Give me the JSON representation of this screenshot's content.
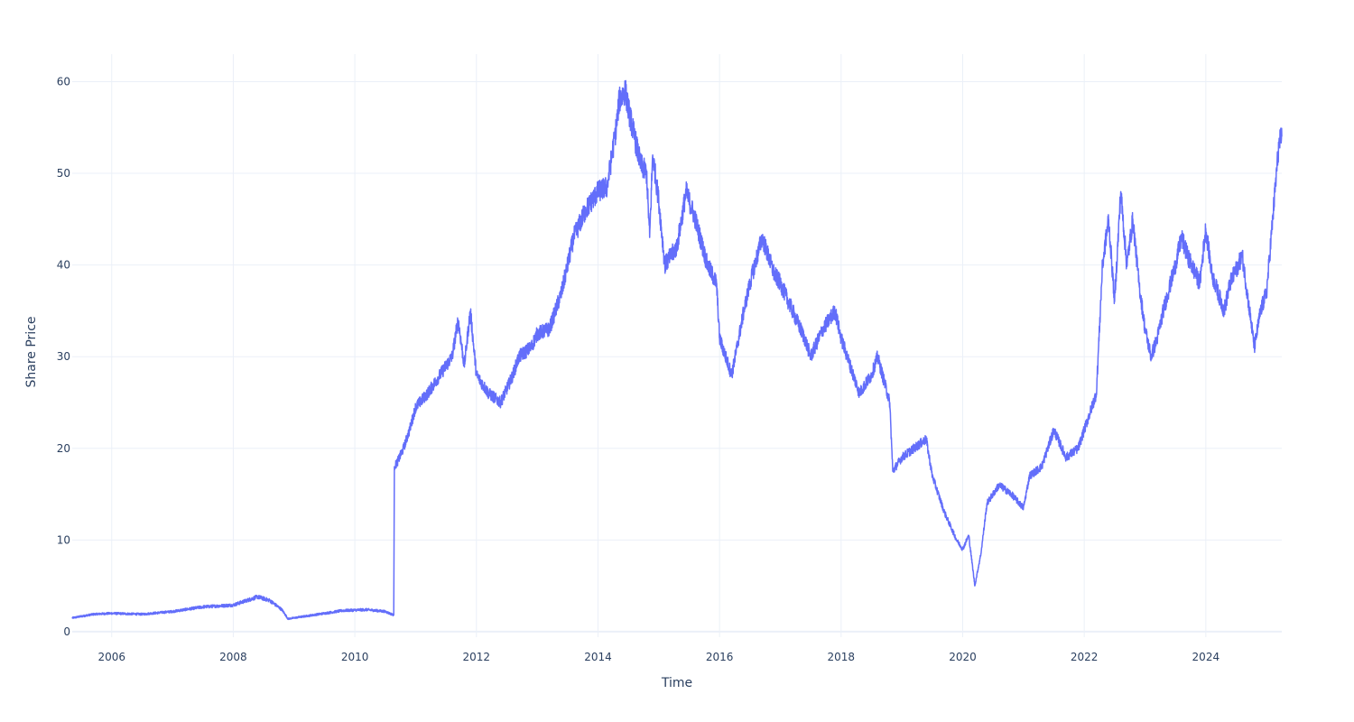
{
  "chart_data": {
    "type": "line",
    "title": "",
    "xlabel": "Time",
    "ylabel": "Share Price",
    "xlim": [
      2005.35,
      2025.25
    ],
    "ylim": [
      -0.6,
      63
    ],
    "x_ticks": [
      2006,
      2008,
      2010,
      2012,
      2014,
      2016,
      2018,
      2020,
      2022,
      2024
    ],
    "x_tick_labels": [
      "2006",
      "2008",
      "2010",
      "2012",
      "2014",
      "2016",
      "2018",
      "2020",
      "2022",
      "2024"
    ],
    "y_ticks": [
      0,
      10,
      20,
      30,
      40,
      50,
      60
    ],
    "y_tick_labels": [
      "0",
      "10",
      "20",
      "30",
      "40",
      "50",
      "60"
    ],
    "grid": true,
    "legend": "none",
    "colors": {
      "line": "#636efa",
      "grid": "#ebf0f8",
      "text": "#2a3f5f",
      "background": "#ffffff"
    },
    "series": [
      {
        "x": [
          2005.35,
          2005.7,
          2006.0,
          2006.5,
          2007.0,
          2007.5,
          2008.0,
          2008.4,
          2008.6,
          2008.8,
          2008.9,
          2009.2,
          2009.5,
          2009.8,
          2010.2,
          2010.5,
          2010.64,
          2010.65,
          2010.7,
          2010.8,
          2010.9,
          2011.0,
          2011.2,
          2011.4,
          2011.6,
          2011.7,
          2011.8,
          2011.9,
          2012.0,
          2012.2,
          2012.4,
          2012.6,
          2012.7,
          2012.9,
          2013.0,
          2013.2,
          2013.4,
          2013.6,
          2013.8,
          2014.0,
          2014.15,
          2014.3,
          2014.35,
          2014.45,
          2014.5,
          2014.6,
          2014.7,
          2014.8,
          2014.85,
          2014.9,
          2015.0,
          2015.1,
          2015.3,
          2015.45,
          2015.6,
          2015.8,
          2015.95,
          2016.0,
          2016.2,
          2016.4,
          2016.5,
          2016.7,
          2016.9,
          2017.0,
          2017.2,
          2017.4,
          2017.5,
          2017.7,
          2017.9,
          2018.0,
          2018.1,
          2018.3,
          2018.5,
          2018.6,
          2018.8,
          2018.85,
          2019.0,
          2019.2,
          2019.4,
          2019.5,
          2019.7,
          2019.9,
          2020.0,
          2020.1,
          2020.2,
          2020.3,
          2020.4,
          2020.6,
          2020.8,
          2021.0,
          2021.1,
          2021.3,
          2021.5,
          2021.7,
          2021.9,
          2022.0,
          2022.2,
          2022.3,
          2022.4,
          2022.5,
          2022.6,
          2022.7,
          2022.8,
          2022.9,
          2023.0,
          2023.1,
          2023.2,
          2023.3,
          2023.5,
          2023.6,
          2023.7,
          2023.9,
          2024.0,
          2024.1,
          2024.3,
          2024.4,
          2024.6,
          2024.7,
          2024.8,
          2024.9,
          2025.0,
          2025.1,
          2025.2,
          2025.25
        ],
        "y": [
          1.5,
          1.9,
          2.0,
          1.9,
          2.2,
          2.7,
          2.9,
          3.8,
          3.4,
          2.4,
          1.4,
          1.7,
          2.0,
          2.3,
          2.4,
          2.2,
          1.8,
          18.0,
          18.5,
          20.0,
          22.0,
          24.5,
          26.0,
          28.0,
          30.0,
          34.0,
          29.0,
          35.0,
          28.0,
          26.0,
          25.0,
          28.0,
          30.0,
          31.0,
          32.5,
          33.0,
          37.0,
          43.0,
          46.0,
          48.0,
          48.5,
          55.0,
          58.0,
          59.0,
          57.0,
          54.0,
          51.0,
          50.0,
          43.0,
          52.0,
          47.0,
          40.0,
          42.0,
          48.0,
          45.0,
          40.0,
          38.0,
          32.0,
          28.0,
          35.0,
          38.0,
          43.0,
          39.0,
          38.0,
          35.0,
          32.0,
          30.0,
          33.0,
          35.0,
          32.0,
          30.0,
          26.0,
          28.0,
          30.0,
          25.0,
          17.5,
          19.0,
          20.0,
          21.0,
          17.0,
          13.0,
          10.0,
          9.0,
          10.5,
          5.0,
          8.5,
          14.0,
          16.0,
          15.0,
          13.5,
          17.0,
          18.0,
          22.0,
          19.0,
          20.0,
          22.0,
          26.0,
          40.0,
          45.0,
          36.0,
          48.0,
          40.0,
          45.0,
          38.0,
          33.0,
          30.0,
          32.0,
          35.0,
          40.0,
          43.0,
          41.0,
          38.0,
          44.0,
          39.0,
          35.0,
          38.0,
          41.0,
          36.0,
          31.0,
          35.0,
          37.0,
          45.0,
          53.0,
          54.0
        ]
      }
    ]
  }
}
